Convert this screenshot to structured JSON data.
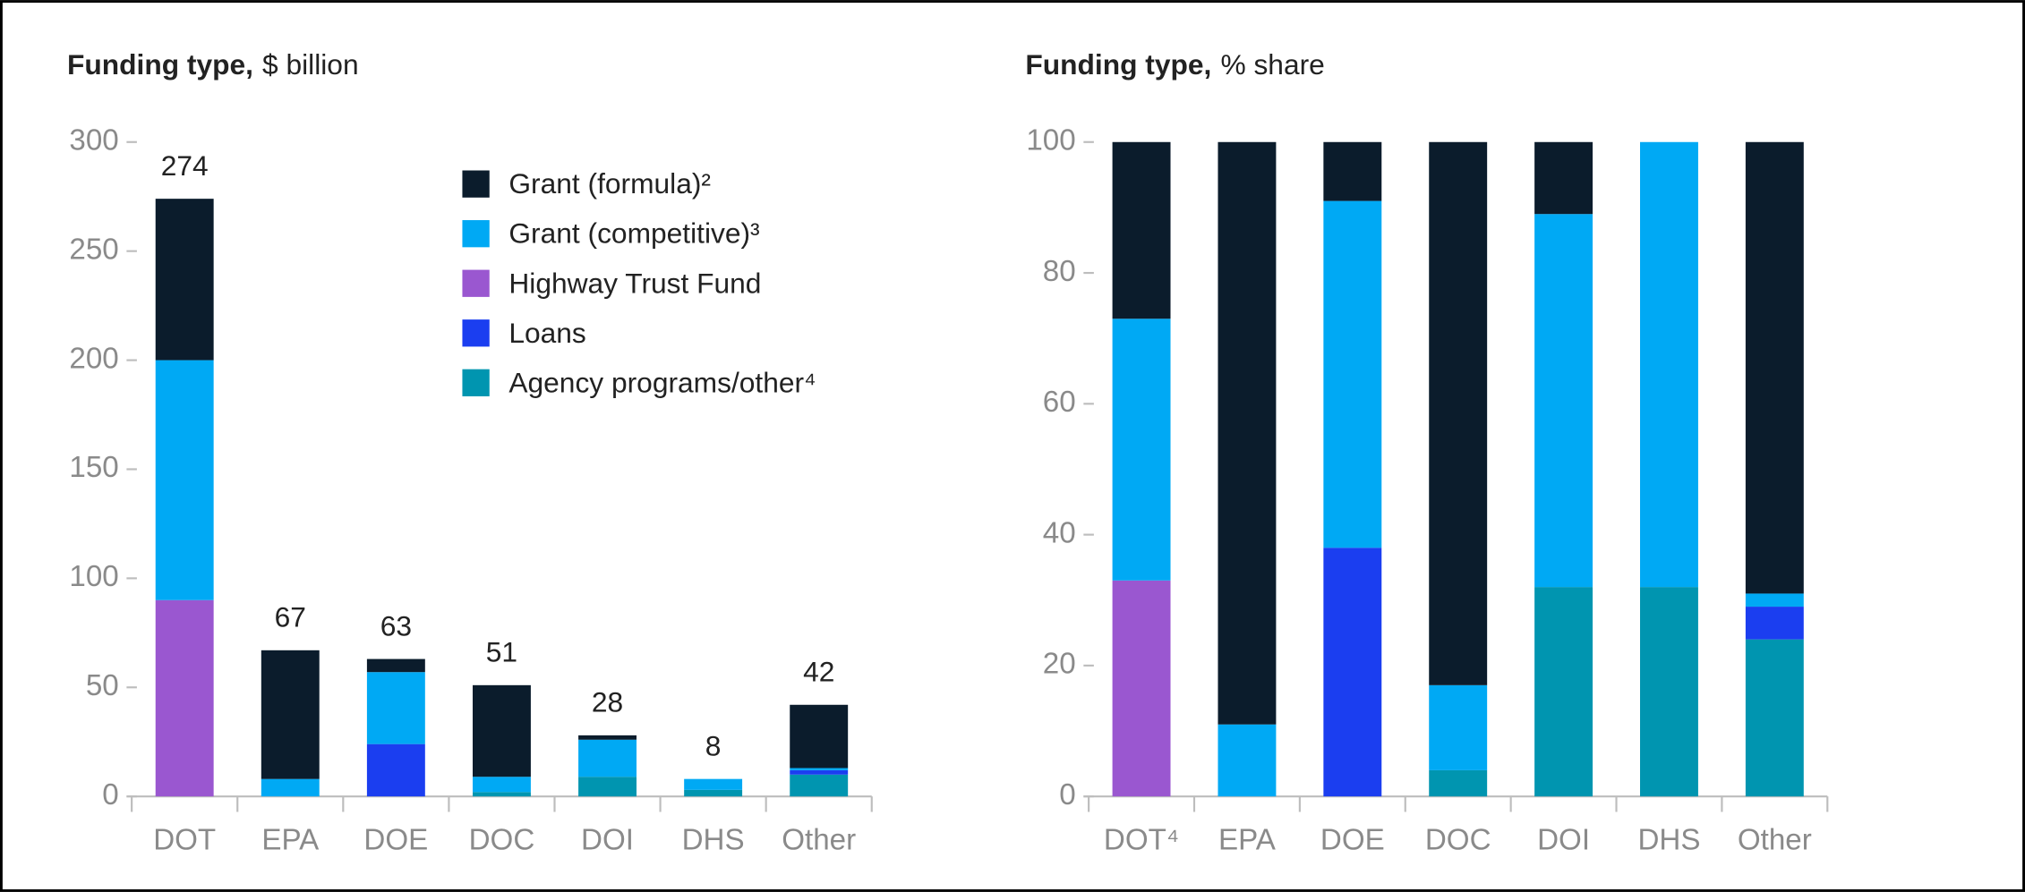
{
  "chart_data": [
    {
      "type": "bar",
      "stacked": true,
      "title": "Funding type,",
      "subtitle": "$ billion",
      "categories": [
        "DOT",
        "EPA",
        "DOE",
        "DOC",
        "DOI",
        "DHS",
        "Other"
      ],
      "series": [
        {
          "name": "Grant (formula)²",
          "color": "#0b1c2c",
          "values": [
            74,
            59,
            6,
            42,
            2,
            0,
            29
          ]
        },
        {
          "name": "Grant (competitive)³",
          "color": "#00a9f4",
          "values": [
            110,
            8,
            33,
            7,
            17,
            5,
            1
          ]
        },
        {
          "name": "Highway Trust Fund",
          "color": "#9a57d0",
          "values": [
            90,
            0,
            0,
            0,
            0,
            0,
            0
          ]
        },
        {
          "name": "Loans",
          "color": "#1b3ef0",
          "values": [
            0,
            0,
            24,
            0,
            0,
            0,
            2
          ]
        },
        {
          "name": "Agency programs/other⁴",
          "color": "#0095b0",
          "values": [
            0,
            0,
            0,
            2,
            9,
            3,
            10
          ]
        }
      ],
      "totals": [
        274,
        67,
        63,
        51,
        28,
        8,
        42
      ],
      "ylim": [
        0,
        300
      ],
      "yticks": [
        0,
        50,
        100,
        150,
        200,
        250,
        300
      ],
      "legend": "top-right"
    },
    {
      "type": "bar",
      "stacked": true,
      "title": "Funding type,",
      "subtitle": "% share",
      "categories": [
        "DOT⁴",
        "EPA",
        "DOE",
        "DOC",
        "DOI",
        "DHS",
        "Other"
      ],
      "series": [
        {
          "color": "#0b1c2c",
          "values": [
            27,
            89,
            9,
            83,
            11,
            0,
            69
          ]
        },
        {
          "color": "#00a9f4",
          "values": [
            40,
            11,
            53,
            13,
            57,
            68,
            2
          ]
        },
        {
          "color": "#9a57d0",
          "values": [
            33,
            0,
            0,
            0,
            0,
            0,
            0
          ]
        },
        {
          "color": "#1b3ef0",
          "values": [
            0,
            0,
            38,
            0,
            0,
            0,
            5
          ]
        },
        {
          "color": "#0095b0",
          "values": [
            0,
            0,
            0,
            4,
            32,
            32,
            24
          ]
        }
      ],
      "ylim": [
        0,
        100
      ],
      "yticks": [
        0,
        20,
        40,
        60,
        80,
        100
      ]
    }
  ]
}
